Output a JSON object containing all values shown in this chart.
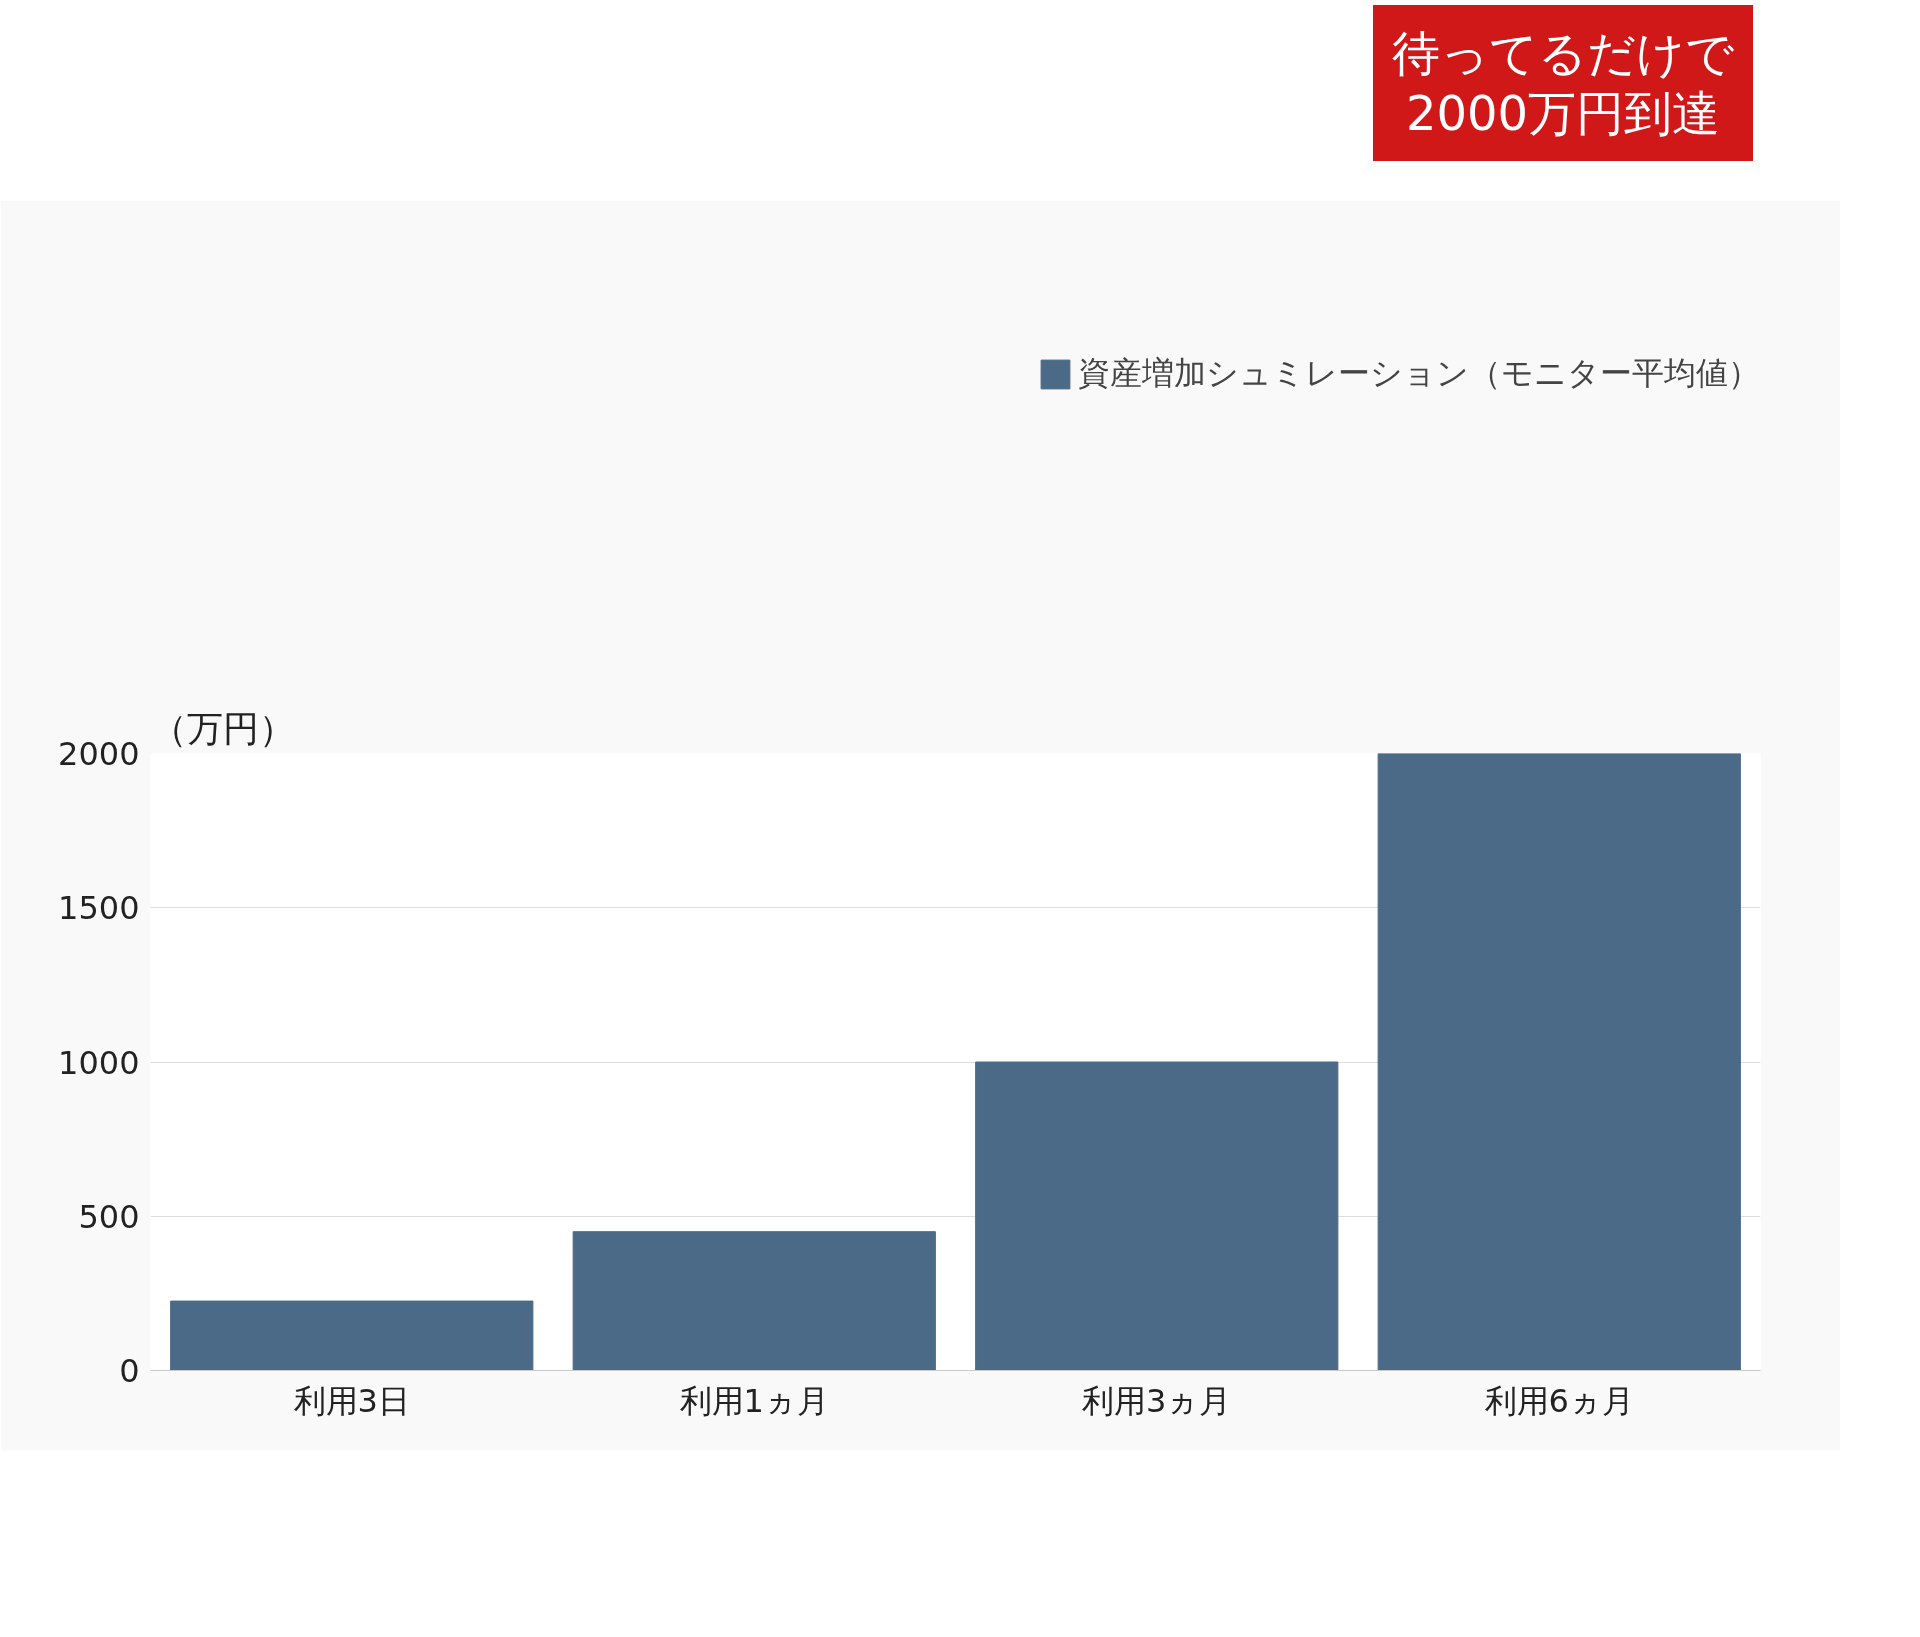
{
  "chart_data": {
    "type": "bar",
    "ylabel": "（万円）",
    "categories": [
      "利用3日",
      "利用1ヵ月",
      "利用3ヵ月",
      "利用6ヵ月"
    ],
    "series": [
      {
        "name": "資産増加シュミレーション（モニター平均値）",
        "color": "#4b6a88",
        "values": [
          225,
          450,
          1000,
          2000
        ]
      }
    ],
    "ylim": [
      0,
      2000
    ],
    "yticks": [
      0,
      500,
      1000,
      1500,
      2000
    ],
    "grid": "y",
    "legend": "top",
    "annotations": [
      "待ってるだけで\n2000万円到達"
    ]
  }
}
